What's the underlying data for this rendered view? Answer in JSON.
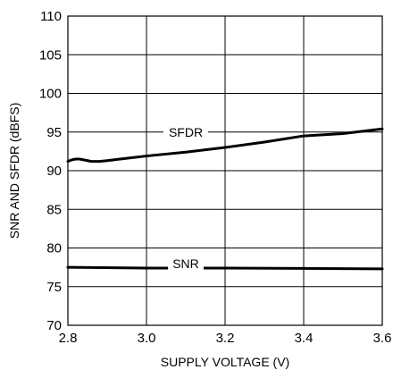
{
  "chart_data": {
    "type": "line",
    "xlabel": "SUPPLY VOLTAGE (V)",
    "ylabel": "SNR AND SFDR (dBFS)",
    "xlim": [
      2.8,
      3.6
    ],
    "ylim": [
      70,
      110
    ],
    "x_ticks": [
      "2.8",
      "3.0",
      "3.2",
      "3.4",
      "3.6"
    ],
    "y_ticks": [
      "70",
      "75",
      "80",
      "85",
      "90",
      "95",
      "100",
      "105",
      "110"
    ],
    "grid": true,
    "series": [
      {
        "name": "SFDR",
        "x": [
          2.8,
          2.81,
          2.82,
          2.83,
          2.84,
          2.85,
          2.86,
          2.87,
          2.88,
          2.9,
          2.95,
          3.0,
          3.1,
          3.2,
          3.3,
          3.4,
          3.5,
          3.6
        ],
        "y": [
          91.2,
          91.4,
          91.5,
          91.5,
          91.4,
          91.3,
          91.2,
          91.2,
          91.2,
          91.3,
          91.6,
          91.9,
          92.4,
          93.0,
          93.7,
          94.5,
          94.8,
          95.4
        ]
      },
      {
        "name": "SNR",
        "x": [
          2.8,
          3.0,
          3.2,
          3.4,
          3.6
        ],
        "y": [
          77.5,
          77.4,
          77.4,
          77.35,
          77.3
        ]
      }
    ]
  }
}
